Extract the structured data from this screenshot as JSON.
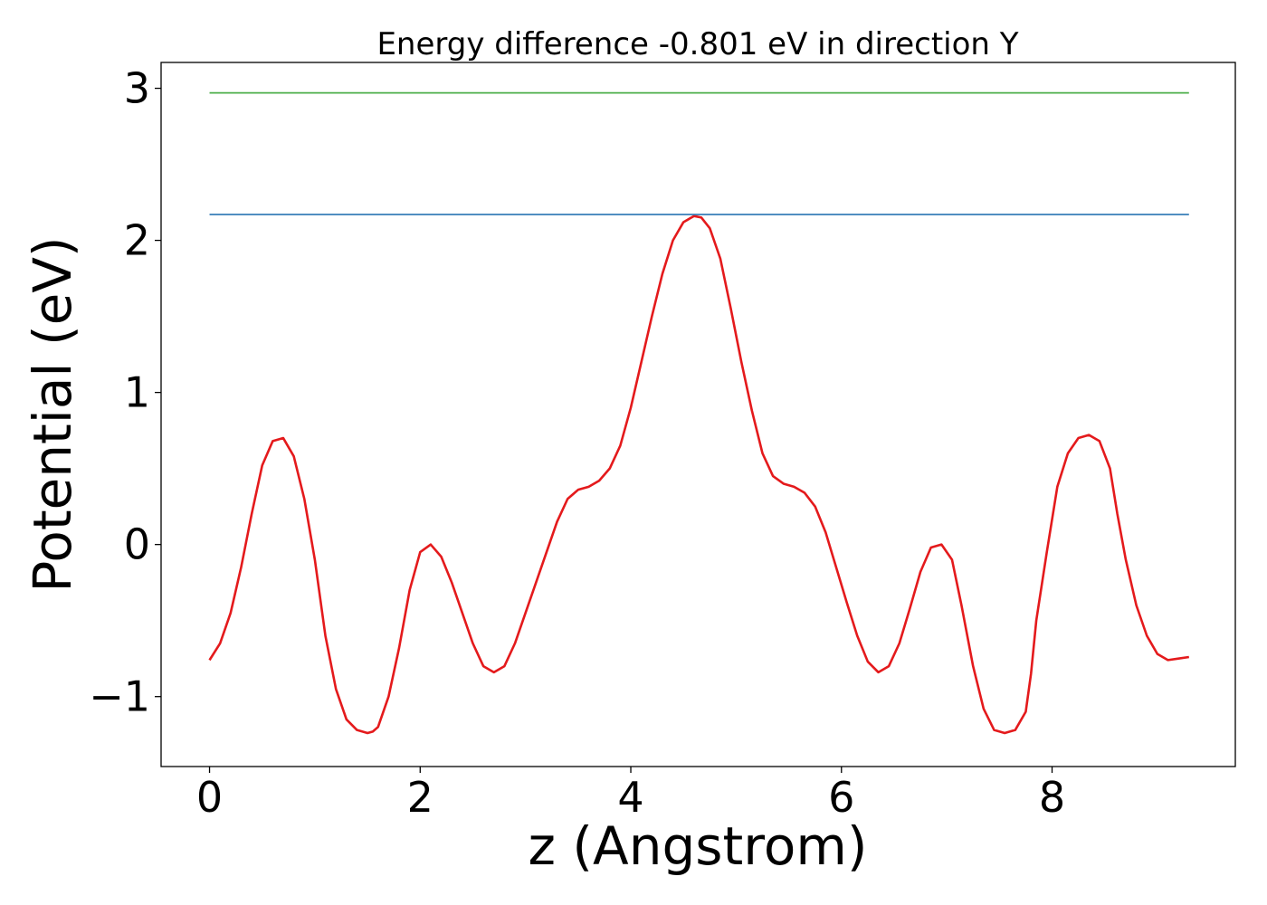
{
  "chart_data": {
    "type": "line",
    "title": "Energy difference -0.801 eV in direction Y",
    "xlabel": "z (Angstrom)",
    "ylabel": "Potential (eV)",
    "xlim": [
      -0.46,
      9.74
    ],
    "ylim": [
      -1.46,
      3.17
    ],
    "xticks": [
      0,
      2,
      4,
      6,
      8
    ],
    "yticks": [
      -1,
      0,
      1,
      2,
      3
    ],
    "xtick_labels": [
      "0",
      "2",
      "4",
      "6",
      "8"
    ],
    "ytick_labels": [
      "−1",
      "0",
      "1",
      "2",
      "3"
    ],
    "grid": false,
    "colors": {
      "potential": "#e41a1c",
      "level_a": "#377eb8",
      "level_b": "#4daf4a"
    },
    "series": [
      {
        "color": "#e41a1c",
        "x": [
          0.0,
          0.1,
          0.2,
          0.3,
          0.4,
          0.5,
          0.6,
          0.7,
          0.8,
          0.9,
          1.0,
          1.1,
          1.2,
          1.3,
          1.4,
          1.5,
          1.55,
          1.6,
          1.7,
          1.8,
          1.9,
          2.0,
          2.1,
          2.2,
          2.3,
          2.4,
          2.5,
          2.6,
          2.7,
          2.8,
          2.9,
          3.0,
          3.1,
          3.2,
          3.3,
          3.4,
          3.5,
          3.6,
          3.7,
          3.8,
          3.9,
          4.0,
          4.1,
          4.2,
          4.3,
          4.4,
          4.5,
          4.6,
          4.67,
          4.75,
          4.85,
          4.95,
          5.05,
          5.15,
          5.25,
          5.35,
          5.45,
          5.55,
          5.65,
          5.75,
          5.85,
          5.95,
          6.05,
          6.15,
          6.25,
          6.35,
          6.45,
          6.55,
          6.65,
          6.75,
          6.85,
          6.95,
          7.05,
          7.14,
          7.25,
          7.35,
          7.45,
          7.55,
          7.65,
          7.75,
          7.8,
          7.85,
          7.95,
          8.05,
          8.15,
          8.25,
          8.35,
          8.45,
          8.55,
          8.62,
          8.7,
          8.8,
          8.9,
          9.0,
          9.1,
          9.2,
          9.3
        ],
        "y": [
          -0.76,
          -0.65,
          -0.45,
          -0.15,
          0.2,
          0.52,
          0.68,
          0.7,
          0.58,
          0.3,
          -0.1,
          -0.6,
          -0.95,
          -1.15,
          -1.22,
          -1.24,
          -1.23,
          -1.2,
          -1.0,
          -0.68,
          -0.3,
          -0.05,
          0.0,
          -0.08,
          -0.25,
          -0.45,
          -0.65,
          -0.8,
          -0.84,
          -0.8,
          -0.65,
          -0.45,
          -0.25,
          -0.05,
          0.15,
          0.3,
          0.36,
          0.38,
          0.42,
          0.5,
          0.65,
          0.9,
          1.2,
          1.5,
          1.78,
          2.0,
          2.12,
          2.16,
          2.15,
          2.08,
          1.88,
          1.55,
          1.2,
          0.88,
          0.6,
          0.45,
          0.4,
          0.38,
          0.34,
          0.25,
          0.08,
          -0.15,
          -0.38,
          -0.6,
          -0.77,
          -0.84,
          -0.8,
          -0.65,
          -0.42,
          -0.18,
          -0.02,
          0.0,
          -0.1,
          -0.4,
          -0.8,
          -1.08,
          -1.22,
          -1.24,
          -1.22,
          -1.1,
          -0.85,
          -0.5,
          -0.05,
          0.38,
          0.6,
          0.7,
          0.72,
          0.68,
          0.5,
          0.2,
          -0.1,
          -0.4,
          -0.6,
          -0.72,
          -0.76,
          -0.75,
          -0.74
        ]
      },
      {
        "color": "#377eb8",
        "x": [
          0.0,
          9.3
        ],
        "y": [
          2.17,
          2.17
        ]
      },
      {
        "color": "#4daf4a",
        "x": [
          0.0,
          9.3
        ],
        "y": [
          2.97,
          2.97
        ]
      }
    ]
  }
}
